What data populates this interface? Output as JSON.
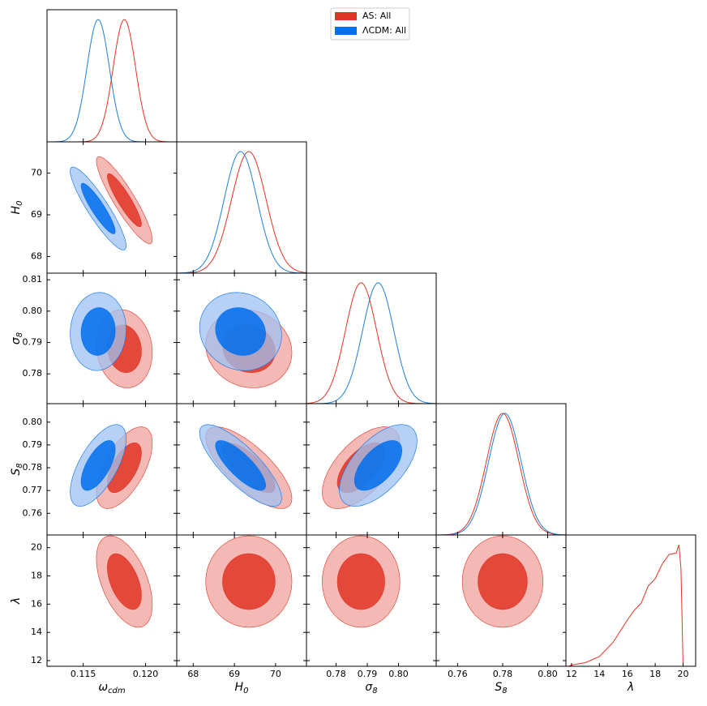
{
  "chart_data": {
    "type": "corner",
    "density_ylim": [
      0,
      1.08
    ],
    "parameters": [
      {
        "symbol": "ω",
        "sub": "cdm",
        "lim": [
          0.1121,
          0.1225
        ],
        "xticks": [
          {
            "value": 0.115,
            "label": "0.115"
          },
          {
            "value": 0.12,
            "label": "0.120"
          }
        ]
      },
      {
        "symbol": "H",
        "sub": "0",
        "lim": [
          67.6,
          70.75
        ],
        "xticks": [
          68,
          69,
          70
        ],
        "yticks": [
          68,
          69,
          70
        ]
      },
      {
        "symbol": "σ",
        "sub": "8",
        "lim": [
          0.7705,
          0.8121
        ],
        "xticks": [
          0.78,
          0.79,
          {
            "value": 0.8,
            "label": "0.80"
          }
        ],
        "yticks": [
          0.78,
          0.79,
          {
            "value": 0.8,
            "label": "0.80"
          },
          0.81
        ]
      },
      {
        "symbol": "S",
        "sub": "8",
        "lim": [
          0.7505,
          0.8081
        ],
        "xticks": [
          0.76,
          0.78,
          {
            "value": 0.8,
            "label": "0.80"
          }
        ],
        "yticks": [
          0.76,
          0.77,
          0.78,
          0.79,
          {
            "value": 0.8,
            "label": "0.80"
          }
        ]
      },
      {
        "symbol": "λ",
        "sub": null,
        "lim": [
          11.6,
          20.9
        ],
        "xticks": [
          12,
          14,
          16,
          18,
          20
        ],
        "yticks": [
          12,
          14,
          16,
          18,
          20
        ]
      }
    ],
    "series": [
      {
        "name": "AS: All",
        "color": "#e03424",
        "light": "#f2a29c",
        "line": "#e03424",
        "means": [
          0.1183,
          69.35,
          0.788,
          0.78,
          17.6
        ],
        "sigmas": [
          0.0009,
          0.42,
          0.005,
          0.0072,
          1.3
        ],
        "corr": [
          [
            1,
            -0.9,
            -0.1,
            0.6,
            -0.5
          ],
          [
            -0.9,
            1,
            -0.1,
            -0.75,
            0
          ],
          [
            -0.1,
            -0.1,
            1,
            0.6,
            0
          ],
          [
            0.6,
            -0.75,
            0.6,
            1,
            0
          ],
          [
            -0.5,
            0,
            0,
            0,
            1
          ]
        ],
        "lambda_x": [
          11.8,
          12,
          13,
          14,
          15,
          16,
          16.5,
          17,
          17.5,
          18,
          18.5,
          19,
          19.5,
          19.7,
          19.85,
          20
        ],
        "lambda_density": [
          0,
          0.01,
          0.03,
          0.08,
          0.2,
          0.38,
          0.46,
          0.52,
          0.66,
          0.72,
          0.84,
          0.92,
          0.93,
          1.0,
          0.8,
          0
        ]
      },
      {
        "name": "ΛCDM: All",
        "color": "#006fed",
        "light": "#9ec2f2",
        "line": "#1f7ed8",
        "means": [
          0.1162,
          69.15,
          0.7935,
          0.781,
          null
        ],
        "sigmas": [
          0.0009,
          0.4,
          0.005,
          0.0072,
          null
        ],
        "corr": [
          [
            1,
            -0.9,
            0.05,
            0.65,
            null
          ],
          [
            -0.9,
            1,
            -0.1,
            -0.8,
            null
          ],
          [
            0.05,
            -0.1,
            1,
            0.6,
            null
          ],
          [
            0.65,
            -0.8,
            0.6,
            1,
            null
          ],
          [
            null,
            null,
            null,
            null,
            null
          ]
        ]
      }
    ]
  }
}
